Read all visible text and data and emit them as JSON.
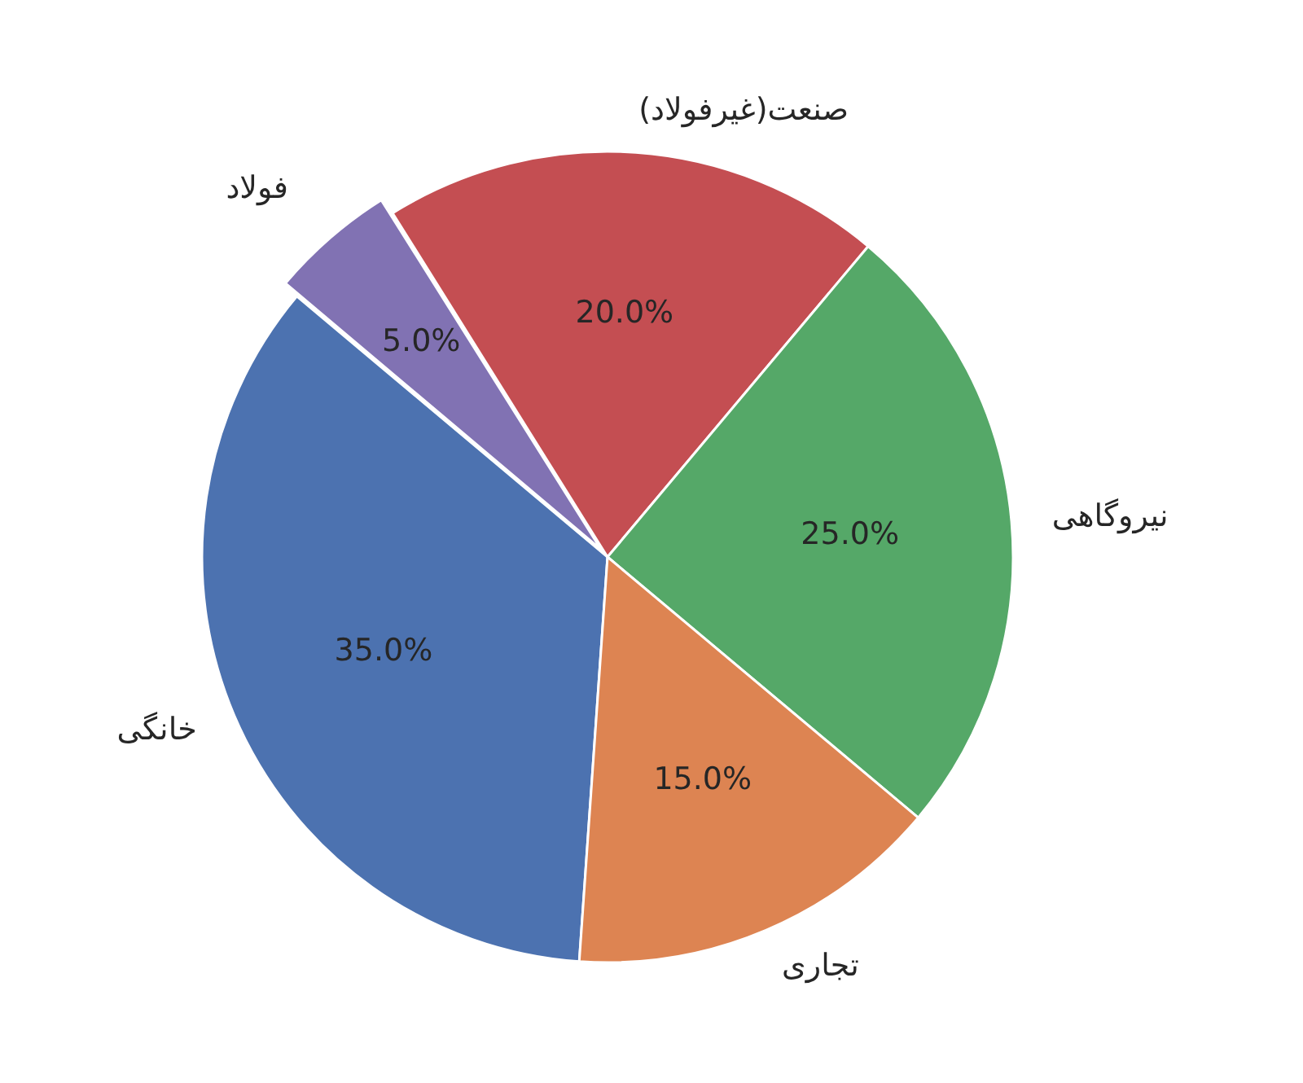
{
  "chart_data": {
    "type": "pie",
    "categories": [
      "خانگی",
      "فولاد",
      "صنعت(غیرفولاد)",
      "نیروگاهی",
      "تجاری"
    ],
    "values": [
      35,
      5,
      20,
      25,
      15
    ],
    "colors": [
      "#4c72b0",
      "#8172b3",
      "#c44e52",
      "#55a868",
      "#dd8452"
    ],
    "value_labels": [
      "35.0%",
      "5.0%",
      "20.0%",
      "25.0%",
      "15.0%"
    ]
  }
}
